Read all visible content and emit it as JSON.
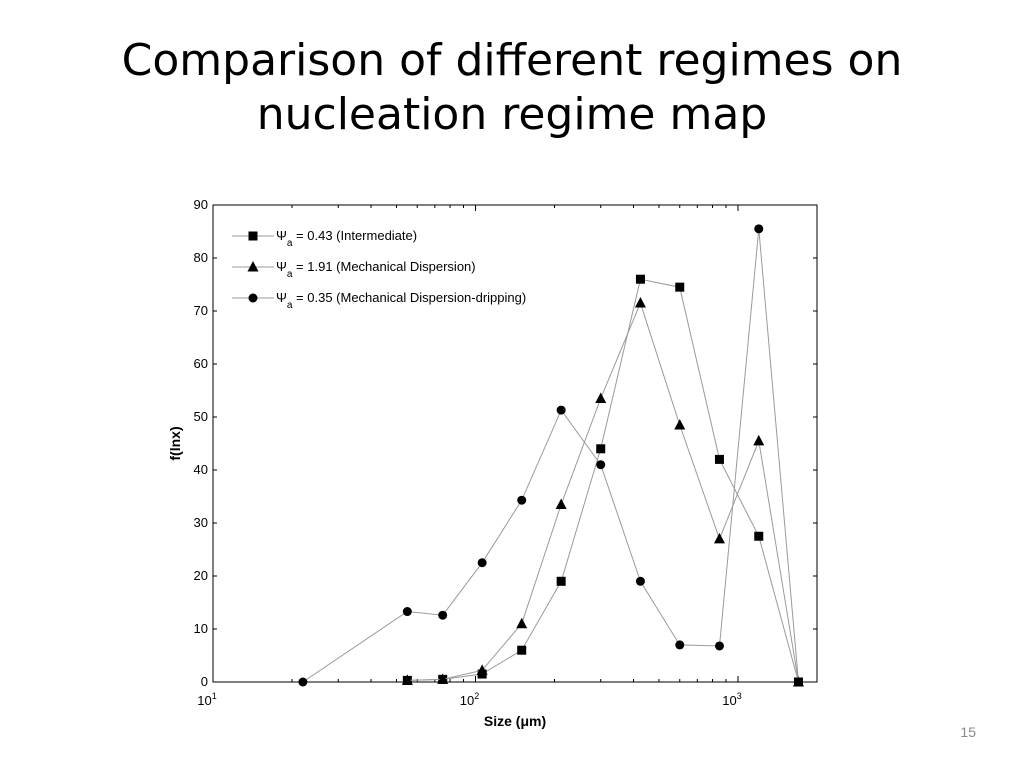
{
  "slide": {
    "title_line1": "Comparison of different regimes on",
    "title_line2": "nucleation regime map",
    "page_number": "15"
  },
  "chart_data": {
    "type": "line",
    "title": "",
    "xlabel": "Size (μm)",
    "ylabel": "f(lnx)",
    "xscale": "log",
    "xlim": [
      10,
      2000
    ],
    "ylim": [
      0,
      90
    ],
    "x_ticks": [
      {
        "value": 10,
        "base": "10",
        "exp": "1"
      },
      {
        "value": 100,
        "base": "10",
        "exp": "2"
      },
      {
        "value": 1000,
        "base": "10",
        "exp": "3"
      }
    ],
    "y_ticks": [
      0,
      10,
      20,
      30,
      40,
      50,
      60,
      70,
      80,
      90
    ],
    "grid": false,
    "legend_position": "top-left",
    "line_color": "#9a9a9a",
    "marker_color": "#000000",
    "series": [
      {
        "symbol": "Ψ",
        "subscript": "a",
        "label_text": " = 0.43 (Intermediate)",
        "marker": "square",
        "x": [
          55,
          75,
          106,
          150,
          212,
          300,
          425,
          600,
          850,
          1200,
          1700
        ],
        "y": [
          0.3,
          0.5,
          1.5,
          6,
          19,
          44,
          76,
          74.5,
          42,
          27.5,
          0
        ]
      },
      {
        "symbol": "Ψ",
        "subscript": "a",
        "label_text": " = 1.91 (Mechanical Dispersion)",
        "marker": "triangle",
        "x": [
          55,
          75,
          106,
          150,
          212,
          300,
          425,
          600,
          850,
          1200,
          1700
        ],
        "y": [
          0.3,
          0.5,
          2.2,
          11,
          33.5,
          53.5,
          71.5,
          48.5,
          27,
          45.5,
          0
        ]
      },
      {
        "symbol": "Ψ",
        "subscript": "a",
        "label_text": " = 0.35 (Mechanical Dispersion-dripping)",
        "marker": "circle",
        "x": [
          22,
          55,
          75,
          106,
          150,
          212,
          300,
          425,
          600,
          850,
          1200,
          1700
        ],
        "y": [
          0,
          13.3,
          12.6,
          22.5,
          34.3,
          51.3,
          41,
          19,
          7,
          6.8,
          85.5,
          0
        ]
      }
    ]
  }
}
